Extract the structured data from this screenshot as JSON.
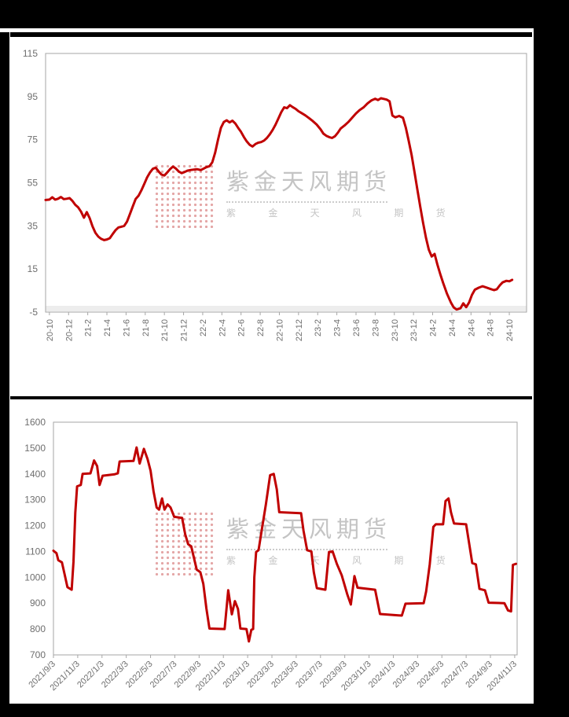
{
  "page": {
    "background": "#000000",
    "panel_background": "#ffffff"
  },
  "watermark": {
    "brand_text": "紫金天风期货",
    "sub_text": "紫 金 天 风 期 货",
    "square_color": "#c23a3a",
    "text_color": "#8a8a8a"
  },
  "chart_data": [
    {
      "type": "line",
      "title": "",
      "xlabel": "",
      "ylabel": "",
      "legend": "none",
      "grid": false,
      "ylim": [
        -5,
        115
      ],
      "y_ticks": [
        115,
        95,
        75,
        55,
        35,
        15,
        -5
      ],
      "xlim": [
        -0.4,
        49.8
      ],
      "x_tick_start": 0,
      "x_tick_step": 2,
      "x_tick_labels": [
        "20-10",
        "20-12",
        "21-2",
        "21-4",
        "21-6",
        "21-8",
        "21-10",
        "21-12",
        "22-2",
        "22-4",
        "22-6",
        "22-8",
        "22-10",
        "22-12",
        "23-2",
        "23-4",
        "23-6",
        "23-8",
        "23-10",
        "23-12",
        "24-2",
        "24-4",
        "24-6",
        "24-8",
        "24-10"
      ],
      "x_label_rotation": -90,
      "line_color": "#c00000",
      "border_color": "#a6a6a6",
      "label_color": "#6e6e6e",
      "series": [
        {
          "name": "series-1",
          "points": [
            [
              -0.4,
              47
            ],
            [
              0,
              47.2
            ],
            [
              0.3,
              48.3
            ],
            [
              0.6,
              47.2
            ],
            [
              0.9,
              47.6
            ],
            [
              1.2,
              48.4
            ],
            [
              1.5,
              47.4
            ],
            [
              1.8,
              47.6
            ],
            [
              2.1,
              47.9
            ],
            [
              2.4,
              46.6
            ],
            [
              2.7,
              44.8
            ],
            [
              3.0,
              43.6
            ],
            [
              3.3,
              41.6
            ],
            [
              3.6,
              38.8
            ],
            [
              3.9,
              41.4
            ],
            [
              4.2,
              38.6
            ],
            [
              4.5,
              34.8
            ],
            [
              4.8,
              31.8
            ],
            [
              5.1,
              30.0
            ],
            [
              5.4,
              29.0
            ],
            [
              5.7,
              28.4
            ],
            [
              6.0,
              28.7
            ],
            [
              6.3,
              29.3
            ],
            [
              6.6,
              31.2
            ],
            [
              6.9,
              33.0
            ],
            [
              7.2,
              34.3
            ],
            [
              7.5,
              34.6
            ],
            [
              7.8,
              35.0
            ],
            [
              8.1,
              37.0
            ],
            [
              8.4,
              40.5
            ],
            [
              8.7,
              44.0
            ],
            [
              9.0,
              47.5
            ],
            [
              9.3,
              49.0
            ],
            [
              9.6,
              51.5
            ],
            [
              9.9,
              54.5
            ],
            [
              10.2,
              57.5
            ],
            [
              10.5,
              59.8
            ],
            [
              10.8,
              61.5
            ],
            [
              11.1,
              62.0
            ],
            [
              11.4,
              60.2
            ],
            [
              11.7,
              58.8
            ],
            [
              12.0,
              58.4
            ],
            [
              12.3,
              59.8
            ],
            [
              12.6,
              61.4
            ],
            [
              12.9,
              62.5
            ],
            [
              13.2,
              61.6
            ],
            [
              13.5,
              60.2
            ],
            [
              13.8,
              59.5
            ],
            [
              14.1,
              60.0
            ],
            [
              14.4,
              60.6
            ],
            [
              14.7,
              60.9
            ],
            [
              15.0,
              61.1
            ],
            [
              15.4,
              61.3
            ],
            [
              15.8,
              60.9
            ],
            [
              16.1,
              61.6
            ],
            [
              16.4,
              62.3
            ],
            [
              16.7,
              62.7
            ],
            [
              17.0,
              64.5
            ],
            [
              17.3,
              69.0
            ],
            [
              17.6,
              75.0
            ],
            [
              17.9,
              80.5
            ],
            [
              18.2,
              83.2
            ],
            [
              18.5,
              84.0
            ],
            [
              18.8,
              83.0
            ],
            [
              19.1,
              83.8
            ],
            [
              19.4,
              82.5
            ],
            [
              19.7,
              80.5
            ],
            [
              20.0,
              78.6
            ],
            [
              20.3,
              76.2
            ],
            [
              20.6,
              74.2
            ],
            [
              20.9,
              72.6
            ],
            [
              21.2,
              71.8
            ],
            [
              21.5,
              73.0
            ],
            [
              21.8,
              73.6
            ],
            [
              22.1,
              73.9
            ],
            [
              22.4,
              74.6
            ],
            [
              22.7,
              75.8
            ],
            [
              23.0,
              77.5
            ],
            [
              23.3,
              79.5
            ],
            [
              23.6,
              82.0
            ],
            [
              23.9,
              84.8
            ],
            [
              24.2,
              87.8
            ],
            [
              24.5,
              90.0
            ],
            [
              24.8,
              89.6
            ],
            [
              25.1,
              91.0
            ],
            [
              25.4,
              90.1
            ],
            [
              25.7,
              89.3
            ],
            [
              26.0,
              88.2
            ],
            [
              26.3,
              87.4
            ],
            [
              26.7,
              86.3
            ],
            [
              27.1,
              85.0
            ],
            [
              27.5,
              83.6
            ],
            [
              27.9,
              82.0
            ],
            [
              28.3,
              79.8
            ],
            [
              28.6,
              77.8
            ],
            [
              28.9,
              76.8
            ],
            [
              29.2,
              76.2
            ],
            [
              29.5,
              75.8
            ],
            [
              29.8,
              76.6
            ],
            [
              30.1,
              78.2
            ],
            [
              30.4,
              80.2
            ],
            [
              30.8,
              81.6
            ],
            [
              31.2,
              83.2
            ],
            [
              31.6,
              85.2
            ],
            [
              32.0,
              87.2
            ],
            [
              32.4,
              88.8
            ],
            [
              32.8,
              90.0
            ],
            [
              33.2,
              91.8
            ],
            [
              33.6,
              93.2
            ],
            [
              34.0,
              94.0
            ],
            [
              34.3,
              93.4
            ],
            [
              34.6,
              94.2
            ],
            [
              34.9,
              93.9
            ],
            [
              35.2,
              93.6
            ],
            [
              35.5,
              92.8
            ],
            [
              35.8,
              86.2
            ],
            [
              36.1,
              85.4
            ],
            [
              36.5,
              86.0
            ],
            [
              36.9,
              85.2
            ],
            [
              37.2,
              80.5
            ],
            [
              37.5,
              74.5
            ],
            [
              37.8,
              68.0
            ],
            [
              38.1,
              60.0
            ],
            [
              38.4,
              52.0
            ],
            [
              38.7,
              44.0
            ],
            [
              39.0,
              36.5
            ],
            [
              39.3,
              29.5
            ],
            [
              39.6,
              24.0
            ],
            [
              39.9,
              20.8
            ],
            [
              40.2,
              22.0
            ],
            [
              40.5,
              17.0
            ],
            [
              40.8,
              12.5
            ],
            [
              41.1,
              8.5
            ],
            [
              41.5,
              3.5
            ],
            [
              41.9,
              -0.5
            ],
            [
              42.2,
              -2.8
            ],
            [
              42.5,
              -3.8
            ],
            [
              42.9,
              -3.2
            ],
            [
              43.2,
              -0.9
            ],
            [
              43.5,
              -2.7
            ],
            [
              43.8,
              -0.5
            ],
            [
              44.1,
              3.0
            ],
            [
              44.4,
              5.4
            ],
            [
              44.8,
              6.3
            ],
            [
              45.2,
              7.0
            ],
            [
              45.6,
              6.4
            ],
            [
              46.0,
              5.8
            ],
            [
              46.4,
              5.2
            ],
            [
              46.7,
              5.6
            ],
            [
              47.0,
              7.4
            ],
            [
              47.3,
              8.8
            ],
            [
              47.7,
              9.5
            ],
            [
              48.0,
              9.3
            ],
            [
              48.3,
              10.0
            ]
          ]
        }
      ]
    },
    {
      "type": "line",
      "title": "",
      "xlabel": "",
      "ylabel": "",
      "legend": "none",
      "grid": false,
      "ylim": [
        700,
        1600
      ],
      "y_ticks": [
        1600,
        1500,
        1400,
        1300,
        1200,
        1100,
        1000,
        900,
        800,
        700
      ],
      "xlim": [
        0,
        38.2
      ],
      "x_tick_start": 0,
      "x_tick_step": 2,
      "x_tick_labels": [
        "2021/9/3",
        "2021/11/3",
        "2022/1/3",
        "2022/3/3",
        "2022/5/3",
        "2022/7/3",
        "2022/9/3",
        "2022/11/3",
        "2023/1/3",
        "2023/3/3",
        "2023/5/3",
        "2023/7/3",
        "2023/9/3",
        "2023/11/3",
        "2024/1/3",
        "2024/3/3",
        "2024/5/3",
        "2024/7/3",
        "2024/9/3",
        "2024/11/3"
      ],
      "x_label_rotation": -45,
      "line_color": "#c00000",
      "border_color": "#a6a6a6",
      "label_color": "#6e6e6e",
      "series": [
        {
          "name": "series-1",
          "points": [
            [
              0,
              1103
            ],
            [
              0.25,
              1093
            ],
            [
              0.4,
              1066
            ],
            [
              0.7,
              1058
            ],
            [
              0.95,
              1005
            ],
            [
              1.15,
              962
            ],
            [
              1.5,
              952
            ],
            [
              1.65,
              1060
            ],
            [
              1.8,
              1250
            ],
            [
              1.95,
              1352
            ],
            [
              2.25,
              1357
            ],
            [
              2.4,
              1400
            ],
            [
              3.05,
              1402
            ],
            [
              3.35,
              1452
            ],
            [
              3.6,
              1430
            ],
            [
              3.8,
              1357
            ],
            [
              4.05,
              1393
            ],
            [
              5.0,
              1398
            ],
            [
              5.3,
              1402
            ],
            [
              5.45,
              1448
            ],
            [
              6.6,
              1450
            ],
            [
              6.85,
              1502
            ],
            [
              7.1,
              1440
            ],
            [
              7.45,
              1497
            ],
            [
              7.75,
              1458
            ],
            [
              8.0,
              1412
            ],
            [
              8.25,
              1332
            ],
            [
              8.5,
              1270
            ],
            [
              8.7,
              1262
            ],
            [
              8.95,
              1305
            ],
            [
              9.15,
              1262
            ],
            [
              9.4,
              1282
            ],
            [
              9.65,
              1270
            ],
            [
              9.95,
              1234
            ],
            [
              10.6,
              1230
            ],
            [
              10.85,
              1167
            ],
            [
              11.1,
              1128
            ],
            [
              11.35,
              1120
            ],
            [
              11.55,
              1080
            ],
            [
              11.8,
              1030
            ],
            [
              12.1,
              1020
            ],
            [
              12.35,
              975
            ],
            [
              12.6,
              880
            ],
            [
              12.85,
              802
            ],
            [
              14.1,
              800
            ],
            [
              14.4,
              950
            ],
            [
              14.7,
              857
            ],
            [
              14.95,
              908
            ],
            [
              15.2,
              878
            ],
            [
              15.4,
              802
            ],
            [
              15.9,
              800
            ],
            [
              16.1,
              752
            ],
            [
              16.3,
              797
            ],
            [
              16.45,
              800
            ],
            [
              16.55,
              1000
            ],
            [
              16.7,
              1098
            ],
            [
              16.9,
              1105
            ],
            [
              17.15,
              1180
            ],
            [
              17.5,
              1282
            ],
            [
              17.85,
              1395
            ],
            [
              18.15,
              1400
            ],
            [
              18.4,
              1340
            ],
            [
              18.6,
              1252
            ],
            [
              20.4,
              1248
            ],
            [
              20.6,
              1180
            ],
            [
              20.9,
              1105
            ],
            [
              21.25,
              1100
            ],
            [
              21.45,
              1020
            ],
            [
              21.7,
              958
            ],
            [
              22.4,
              952
            ],
            [
              22.7,
              1098
            ],
            [
              23.0,
              1100
            ],
            [
              23.35,
              1052
            ],
            [
              23.75,
              1008
            ],
            [
              24.2,
              935
            ],
            [
              24.5,
              895
            ],
            [
              24.8,
              1005
            ],
            [
              25.05,
              960
            ],
            [
              26.5,
              952
            ],
            [
              26.9,
              858
            ],
            [
              28.7,
              852
            ],
            [
              29.0,
              898
            ],
            [
              30.5,
              900
            ],
            [
              30.7,
              945
            ],
            [
              31.0,
              1050
            ],
            [
              31.3,
              1195
            ],
            [
              31.5,
              1205
            ],
            [
              32.1,
              1205
            ],
            [
              32.3,
              1295
            ],
            [
              32.55,
              1305
            ],
            [
              32.75,
              1252
            ],
            [
              33.0,
              1208
            ],
            [
              34.0,
              1205
            ],
            [
              34.5,
              1055
            ],
            [
              34.8,
              1050
            ],
            [
              35.1,
              955
            ],
            [
              35.55,
              950
            ],
            [
              35.85,
              902
            ],
            [
              37.15,
              900
            ],
            [
              37.45,
              872
            ],
            [
              37.7,
              868
            ],
            [
              37.85,
              1048
            ],
            [
              38.1,
              1052
            ]
          ]
        }
      ]
    }
  ]
}
